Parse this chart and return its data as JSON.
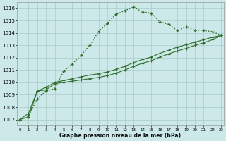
{
  "xlabel": "Graphe pression niveau de la mer (hPa)",
  "x_ticks": [
    0,
    1,
    2,
    3,
    4,
    5,
    6,
    7,
    8,
    9,
    10,
    11,
    12,
    13,
    14,
    15,
    16,
    17,
    18,
    19,
    20,
    21,
    22,
    23
  ],
  "ylim": [
    1006.5,
    1016.5
  ],
  "xlim": [
    -0.3,
    23.3
  ],
  "yticks": [
    1007,
    1008,
    1009,
    1010,
    1011,
    1012,
    1013,
    1014,
    1015,
    1016
  ],
  "bg_color": "#cce8e8",
  "grid_color": "#aacccc",
  "line_color": "#2d6e2d",
  "line1": [
    1007.0,
    1007.3,
    1008.7,
    1009.3,
    1009.5,
    1010.9,
    1011.5,
    1012.2,
    1013.0,
    1014.1,
    1014.8,
    1015.5,
    1015.8,
    1016.1,
    1015.7,
    1015.6,
    1014.9,
    1014.7,
    1014.2,
    1014.5,
    1014.2,
    1014.2,
    1014.1,
    1013.8
  ],
  "line2": [
    1007.0,
    1007.2,
    1009.3,
    1009.4,
    1009.9,
    1010.0,
    1010.1,
    1010.2,
    1010.3,
    1010.4,
    1010.55,
    1010.75,
    1011.0,
    1011.3,
    1011.55,
    1011.75,
    1012.05,
    1012.3,
    1012.55,
    1012.75,
    1013.0,
    1013.2,
    1013.45,
    1013.8
  ],
  "line3": [
    1007.0,
    1007.5,
    1009.3,
    1009.6,
    1010.0,
    1010.15,
    1010.3,
    1010.45,
    1010.6,
    1010.7,
    1010.85,
    1011.05,
    1011.3,
    1011.6,
    1011.85,
    1012.05,
    1012.35,
    1012.6,
    1012.85,
    1013.05,
    1013.25,
    1013.45,
    1013.65,
    1013.8
  ]
}
